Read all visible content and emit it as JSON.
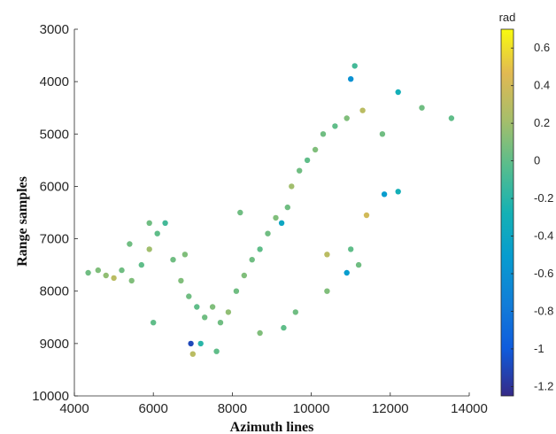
{
  "chart_data": {
    "type": "scatter",
    "title": "",
    "xlabel": "Azimuth lines",
    "ylabel": "Range samples",
    "xlim": [
      4000,
      14000
    ],
    "ylim": [
      3000,
      10000
    ],
    "y_reversed": true,
    "x_ticks": [
      "4000",
      "6000",
      "8000",
      "10000",
      "12000",
      "14000"
    ],
    "y_ticks": [
      "3000",
      "4000",
      "5000",
      "6000",
      "7000",
      "8000",
      "9000",
      "10000"
    ],
    "colorbar": {
      "unit": "rad",
      "range": [
        -1.25,
        0.7
      ],
      "colormap": "parula",
      "ticks": [
        "0.6",
        "0.4",
        "0.2",
        "0",
        "-0.2",
        "-0.4",
        "-0.6",
        "-0.8",
        "-1",
        "-1.2"
      ]
    },
    "grid": false,
    "points": [
      {
        "x": 4350,
        "y": 7650,
        "v": 0.05
      },
      {
        "x": 4600,
        "y": 7600,
        "v": 0.1
      },
      {
        "x": 4800,
        "y": 7700,
        "v": 0.15
      },
      {
        "x": 5000,
        "y": 7750,
        "v": 0.3
      },
      {
        "x": 5200,
        "y": 7600,
        "v": 0.05
      },
      {
        "x": 5450,
        "y": 7800,
        "v": 0.1
      },
      {
        "x": 5700,
        "y": 7500,
        "v": 0.0
      },
      {
        "x": 5900,
        "y": 7200,
        "v": 0.2
      },
      {
        "x": 5900,
        "y": 6700,
        "v": 0.05
      },
      {
        "x": 6100,
        "y": 6900,
        "v": 0.0
      },
      {
        "x": 6300,
        "y": 6700,
        "v": -0.1
      },
      {
        "x": 6500,
        "y": 7400,
        "v": 0.05
      },
      {
        "x": 6700,
        "y": 7800,
        "v": 0.1
      },
      {
        "x": 6900,
        "y": 8100,
        "v": 0.05
      },
      {
        "x": 7100,
        "y": 8300,
        "v": 0.0
      },
      {
        "x": 7300,
        "y": 8500,
        "v": 0.05
      },
      {
        "x": 7500,
        "y": 8300,
        "v": 0.1
      },
      {
        "x": 7700,
        "y": 8600,
        "v": 0.05
      },
      {
        "x": 7900,
        "y": 8400,
        "v": 0.15
      },
      {
        "x": 8100,
        "y": 8000,
        "v": 0.05
      },
      {
        "x": 8300,
        "y": 7700,
        "v": 0.1
      },
      {
        "x": 8500,
        "y": 7400,
        "v": 0.05
      },
      {
        "x": 8700,
        "y": 7200,
        "v": 0.0
      },
      {
        "x": 8900,
        "y": 6900,
        "v": 0.05
      },
      {
        "x": 9100,
        "y": 6600,
        "v": 0.1
      },
      {
        "x": 9250,
        "y": 6700,
        "v": -0.4
      },
      {
        "x": 9400,
        "y": 6400,
        "v": 0.05
      },
      {
        "x": 9500,
        "y": 6000,
        "v": 0.2
      },
      {
        "x": 9700,
        "y": 5700,
        "v": 0.05
      },
      {
        "x": 9900,
        "y": 5500,
        "v": 0.0
      },
      {
        "x": 10100,
        "y": 5300,
        "v": 0.1
      },
      {
        "x": 10300,
        "y": 5000,
        "v": 0.05
      },
      {
        "x": 10600,
        "y": 4850,
        "v": 0.0
      },
      {
        "x": 10900,
        "y": 4700,
        "v": 0.1
      },
      {
        "x": 11300,
        "y": 4550,
        "v": 0.3
      },
      {
        "x": 11800,
        "y": 5000,
        "v": 0.05
      },
      {
        "x": 11000,
        "y": 3950,
        "v": -0.6
      },
      {
        "x": 11100,
        "y": 3700,
        "v": -0.1
      },
      {
        "x": 12200,
        "y": 4200,
        "v": -0.3
      },
      {
        "x": 12800,
        "y": 4500,
        "v": 0.05
      },
      {
        "x": 13550,
        "y": 4700,
        "v": 0.0
      },
      {
        "x": 12200,
        "y": 6100,
        "v": -0.3
      },
      {
        "x": 11400,
        "y": 6550,
        "v": 0.4
      },
      {
        "x": 11000,
        "y": 7200,
        "v": 0.0
      },
      {
        "x": 11200,
        "y": 7500,
        "v": 0.05
      },
      {
        "x": 10900,
        "y": 7650,
        "v": -0.5
      },
      {
        "x": 10400,
        "y": 7300,
        "v": 0.3
      },
      {
        "x": 10400,
        "y": 8000,
        "v": 0.1
      },
      {
        "x": 9600,
        "y": 8400,
        "v": 0.05
      },
      {
        "x": 9300,
        "y": 8700,
        "v": 0.0
      },
      {
        "x": 8700,
        "y": 8800,
        "v": 0.1
      },
      {
        "x": 7600,
        "y": 9150,
        "v": 0.0
      },
      {
        "x": 7200,
        "y": 9000,
        "v": -0.2
      },
      {
        "x": 6950,
        "y": 9000,
        "v": -1.1
      },
      {
        "x": 7000,
        "y": 9200,
        "v": 0.3
      },
      {
        "x": 6000,
        "y": 8600,
        "v": 0.0
      },
      {
        "x": 11850,
        "y": 6150,
        "v": -0.5
      },
      {
        "x": 6800,
        "y": 7300,
        "v": 0.1
      },
      {
        "x": 5400,
        "y": 7100,
        "v": 0.05
      },
      {
        "x": 8200,
        "y": 6500,
        "v": 0.05
      }
    ]
  }
}
